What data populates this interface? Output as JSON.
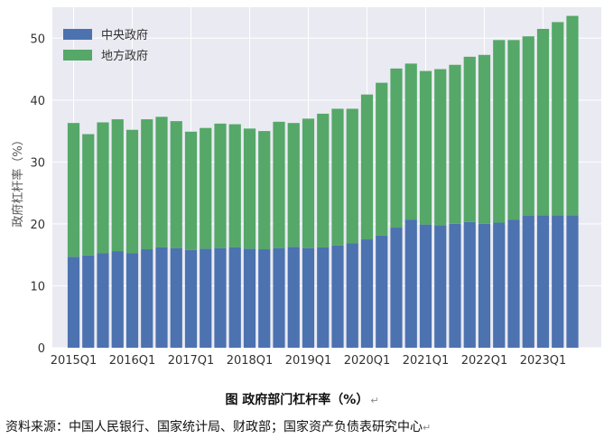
{
  "chart_data": {
    "type": "bar",
    "stacked": true,
    "ylabel": "政府杠杆率（%）",
    "ylim": [
      0,
      55
    ],
    "yticks": [
      0,
      10,
      20,
      30,
      40,
      50
    ],
    "grid": true,
    "legend_position": "top-left",
    "tick_labels": [
      "2015Q1",
      "2016Q1",
      "2017Q1",
      "2018Q1",
      "2019Q1",
      "2020Q1",
      "2021Q1",
      "2022Q1",
      "2023Q1"
    ],
    "categories": [
      "2015Q1",
      "2015Q2",
      "2015Q3",
      "2015Q4",
      "2016Q1",
      "2016Q2",
      "2016Q3",
      "2016Q4",
      "2017Q1",
      "2017Q2",
      "2017Q3",
      "2017Q4",
      "2018Q1",
      "2018Q2",
      "2018Q3",
      "2018Q4",
      "2019Q1",
      "2019Q2",
      "2019Q3",
      "2019Q4",
      "2020Q1",
      "2020Q2",
      "2020Q3",
      "2020Q4",
      "2021Q1",
      "2021Q2",
      "2021Q3",
      "2021Q4",
      "2022Q1",
      "2022Q2",
      "2022Q3",
      "2022Q4",
      "2023Q1",
      "2023Q2",
      "2023Q3"
    ],
    "series": [
      {
        "name": "中央政府",
        "color": "#4c72b0",
        "values": [
          14.7,
          14.9,
          15.3,
          15.6,
          15.3,
          15.9,
          16.2,
          16.1,
          15.8,
          16.0,
          16.1,
          16.2,
          16.0,
          15.9,
          16.1,
          16.3,
          16.1,
          16.2,
          16.5,
          16.9,
          17.5,
          18.1,
          19.4,
          20.7,
          19.9,
          19.8,
          20.0,
          20.3,
          20.0,
          20.2,
          20.7,
          21.3,
          21.4,
          21.4,
          21.4
        ]
      },
      {
        "name": "地方政府",
        "color": "#55a868",
        "values": [
          21.6,
          19.6,
          21.1,
          21.3,
          19.9,
          21.0,
          21.1,
          20.5,
          19.1,
          19.5,
          20.1,
          19.9,
          19.4,
          19.1,
          20.4,
          20.0,
          20.9,
          21.6,
          22.1,
          21.7,
          23.4,
          24.7,
          25.7,
          25.2,
          24.8,
          25.2,
          25.7,
          26.7,
          27.3,
          29.5,
          29.0,
          29.0,
          30.1,
          31.2,
          32.2
        ]
      }
    ]
  },
  "caption": "图  政府部门杠杆率（%）",
  "source": "资料来源：中国人民银行、国家统计局、财政部；国家资产负债表研究中心"
}
